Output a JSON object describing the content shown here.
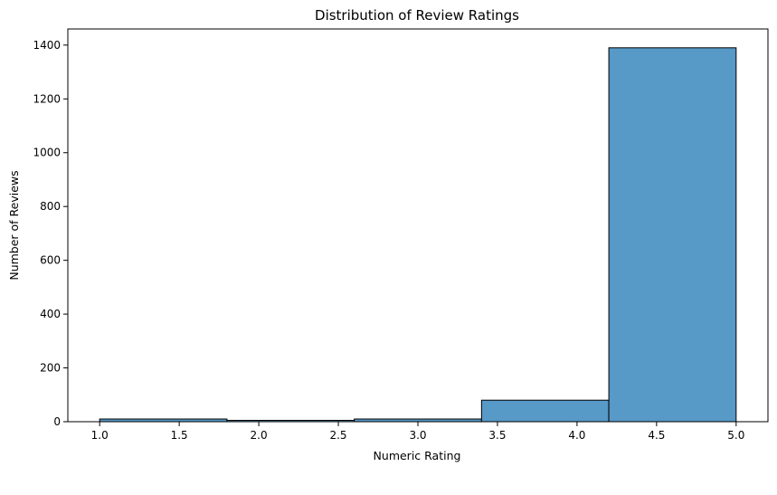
{
  "chart_data": {
    "type": "bar",
    "title": "Distribution of Review Ratings",
    "xlabel": "Numeric Rating",
    "ylabel": "Number of Reviews",
    "bins": [
      {
        "start": 1.0,
        "end": 1.8,
        "count": 10
      },
      {
        "start": 1.8,
        "end": 2.6,
        "count": 5
      },
      {
        "start": 2.6,
        "end": 3.4,
        "count": 10
      },
      {
        "start": 3.4,
        "end": 4.2,
        "count": 80
      },
      {
        "start": 4.2,
        "end": 5.0,
        "count": 1390
      }
    ],
    "xlim": [
      0.8,
      5.2
    ],
    "ylim": [
      0,
      1460
    ],
    "xticks": [
      "1.0",
      "1.5",
      "2.0",
      "2.5",
      "3.0",
      "3.5",
      "4.0",
      "4.5",
      "5.0"
    ],
    "yticks": [
      "0",
      "200",
      "400",
      "600",
      "800",
      "1000",
      "1200",
      "1400"
    ],
    "bar_color": "#5799c7",
    "edge_color": "#000000",
    "grid": false,
    "legend": "none"
  }
}
